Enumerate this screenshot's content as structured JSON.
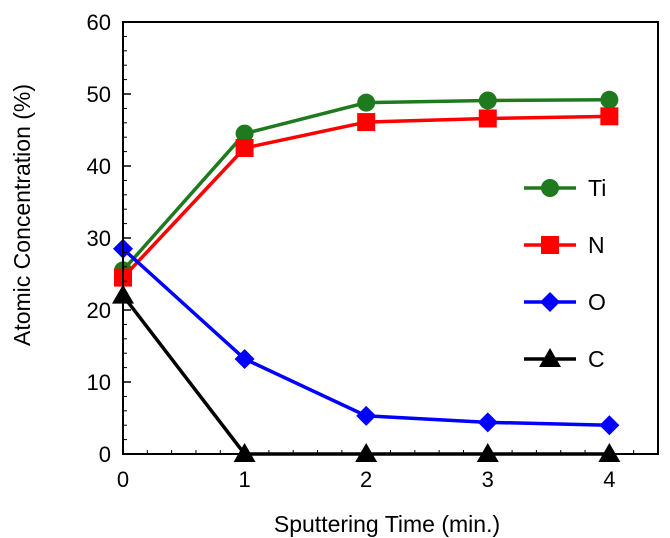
{
  "chart_data": {
    "type": "line",
    "xlabel": "Sputtering Time (min.)",
    "ylabel": "Atomic Concentration (%)",
    "title": "",
    "xlim": [
      0,
      4.4
    ],
    "ylim": [
      0,
      60
    ],
    "x_ticks": [
      0,
      1,
      2,
      3,
      4
    ],
    "y_ticks": [
      0,
      10,
      20,
      30,
      40,
      50,
      60
    ],
    "x": [
      0,
      1,
      2,
      3,
      4
    ],
    "grid": false,
    "legend_position": "right",
    "series": [
      {
        "name": "Ti",
        "color": "#1f7a1f",
        "marker": "circle",
        "values": [
          25.5,
          44.5,
          48.8,
          49.1,
          49.2
        ]
      },
      {
        "name": "N",
        "color": "#ff0000",
        "marker": "square",
        "values": [
          24.5,
          42.5,
          46.1,
          46.6,
          46.9
        ]
      },
      {
        "name": "O",
        "color": "#0000ff",
        "marker": "diamond",
        "values": [
          28.5,
          13.2,
          5.3,
          4.4,
          4.0
        ]
      },
      {
        "name": "C",
        "color": "#000000",
        "marker": "triangle",
        "values": [
          22.0,
          0,
          0,
          0,
          0
        ]
      }
    ]
  }
}
